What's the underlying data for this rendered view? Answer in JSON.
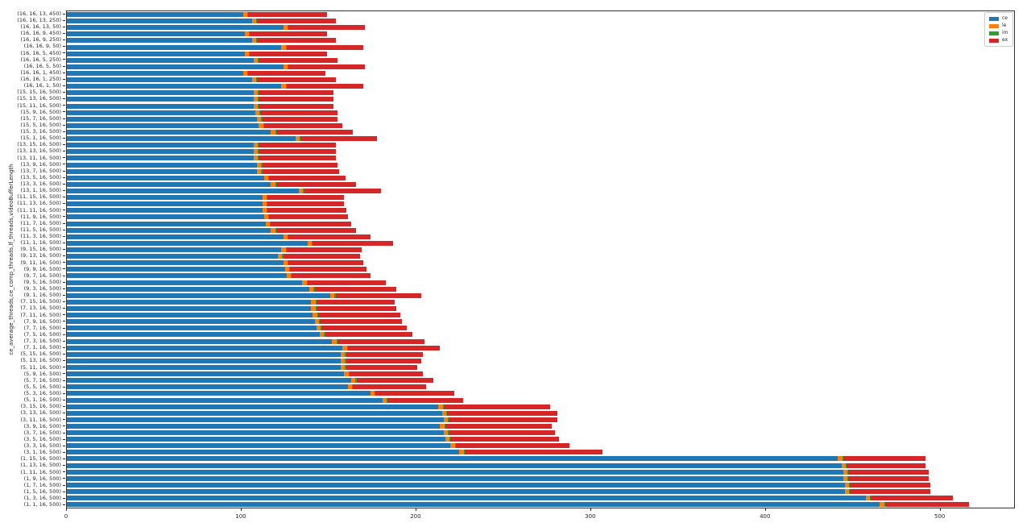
{
  "chart_data": {
    "type": "bar",
    "orientation": "horizontal",
    "stacked": true,
    "title": "",
    "xlabel": "",
    "ylabel": "ce_average_threads,ce_comp_threads,lf_threads,videoBufferLength",
    "xlim": [
      0,
      543
    ],
    "xticks": [
      "0",
      "100",
      "200",
      "300",
      "400",
      "500"
    ],
    "xtick_values": [
      0,
      100,
      200,
      300,
      400,
      500
    ],
    "grid": false,
    "legend": {
      "position": "upper right",
      "entries": [
        "ce",
        "le",
        "im",
        "ex"
      ]
    },
    "colors": {
      "ce": "#1f77b4",
      "le": "#ff7f0e",
      "im": "#2ca02c",
      "ex": "#d62728",
      "spine": "#333333"
    },
    "categories": [
      "(16, 16, 13, 450)",
      "(16, 16, 13, 250)",
      "(16, 16, 13, 50)",
      "(16, 16, 9, 450)",
      "(16, 16, 9, 250)",
      "(16, 16, 9, 50)",
      "(16, 16, 5, 450)",
      "(16, 16, 5, 250)",
      "(16, 16, 5, 50)",
      "(16, 16, 1, 450)",
      "(16, 16, 1, 250)",
      "(16, 16, 1, 50)",
      "(15, 15, 16, 500)",
      "(15, 13, 16, 500)",
      "(15, 11, 16, 500)",
      "(15, 9, 16, 500)",
      "(15, 7, 16, 500)",
      "(15, 5, 16, 500)",
      "(15, 3, 16, 500)",
      "(15, 1, 16, 500)",
      "(13, 15, 16, 500)",
      "(13, 13, 16, 500)",
      "(13, 11, 16, 500)",
      "(13, 9, 16, 500)",
      "(13, 7, 16, 500)",
      "(13, 5, 16, 500)",
      "(13, 3, 16, 500)",
      "(13, 1, 16, 500)",
      "(11, 15, 16, 500)",
      "(11, 13, 16, 500)",
      "(11, 11, 16, 500)",
      "(11, 9, 16, 500)",
      "(11, 7, 16, 500)",
      "(11, 5, 16, 500)",
      "(11, 3, 16, 500)",
      "(11, 1, 16, 500)",
      "(9, 15, 16, 500)",
      "(9, 13, 16, 500)",
      "(9, 11, 16, 500)",
      "(9, 9, 16, 500)",
      "(9, 7, 16, 500)",
      "(9, 5, 16, 500)",
      "(9, 3, 16, 500)",
      "(9, 1, 16, 500)",
      "(7, 15, 16, 500)",
      "(7, 13, 16, 500)",
      "(7, 11, 16, 500)",
      "(7, 9, 16, 500)",
      "(7, 7, 16, 500)",
      "(7, 5, 16, 500)",
      "(7, 3, 16, 500)",
      "(7, 1, 16, 500)",
      "(5, 15, 16, 500)",
      "(5, 13, 16, 500)",
      "(5, 11, 16, 500)",
      "(5, 9, 16, 500)",
      "(5, 7, 16, 500)",
      "(5, 5, 16, 500)",
      "(5, 3, 16, 500)",
      "(5, 1, 16, 500)",
      "(3, 15, 16, 500)",
      "(3, 13, 16, 500)",
      "(3, 11, 16, 500)",
      "(3, 9, 16, 500)",
      "(3, 7, 16, 500)",
      "(3, 5, 16, 500)",
      "(3, 3, 16, 500)",
      "(3, 1, 16, 500)",
      "(1, 15, 16, 500)",
      "(1, 13, 16, 500)",
      "(1, 11, 16, 500)",
      "(1, 9, 16, 500)",
      "(1, 7, 16, 500)",
      "(1, 5, 16, 500)",
      "(1, 3, 16, 500)",
      "(1, 1, 16, 500)"
    ],
    "series": [
      {
        "name": "ce",
        "color": "#1f77b4",
        "values": [
          101,
          106,
          124,
          102,
          106,
          123,
          102,
          107,
          124,
          101,
          106,
          123,
          107,
          107,
          107,
          108,
          109,
          110,
          117,
          131,
          107,
          107,
          107,
          109,
          109,
          113,
          117,
          133,
          112,
          112,
          112,
          113,
          114,
          117,
          124,
          138,
          123,
          121,
          124,
          125,
          126,
          135,
          139,
          151,
          140,
          140,
          141,
          142,
          143,
          145,
          152,
          158,
          157,
          157,
          157,
          159,
          163,
          161,
          174,
          181,
          213,
          215,
          216,
          214,
          216,
          217,
          220,
          225,
          442,
          444,
          445,
          445,
          446,
          446,
          458,
          466
        ]
      },
      {
        "name": "le",
        "color": "#ff7f0e",
        "values": [
          2.5,
          2.5,
          2.5,
          2.5,
          2.5,
          2.5,
          2.5,
          2.5,
          2.5,
          2.5,
          2.5,
          2.5,
          2.5,
          2.5,
          2.5,
          2.5,
          2.5,
          2.5,
          2.5,
          2.5,
          2.5,
          2.5,
          2.5,
          2.5,
          2.5,
          2.5,
          2.5,
          2.5,
          2.5,
          2.5,
          2.5,
          2.5,
          2.5,
          2.5,
          2.5,
          2.5,
          2.5,
          2.5,
          2.5,
          2.5,
          2.5,
          2.5,
          2.5,
          2.5,
          2.5,
          2.5,
          2.5,
          2.5,
          2.5,
          2.5,
          2.5,
          2.5,
          2.5,
          2.5,
          2.5,
          2.5,
          2.5,
          2.5,
          2.5,
          2.5,
          2.5,
          2.5,
          2.5,
          2.5,
          2.5,
          2.5,
          2.5,
          2.5,
          2.5,
          2.5,
          2.5,
          2.5,
          2.5,
          2.5,
          2.5,
          2.5
        ]
      },
      {
        "name": "im",
        "color": "#2ca02c",
        "values": [
          0.5,
          0.5,
          0.5,
          0.5,
          0.5,
          0.5,
          0.5,
          0.5,
          0.5,
          0.5,
          0.5,
          0.5,
          0.5,
          0.5,
          0.5,
          0.5,
          0.5,
          0.5,
          0.5,
          0.5,
          0.5,
          0.5,
          0.5,
          0.5,
          0.5,
          0.5,
          0.5,
          0.5,
          0.5,
          0.5,
          0.5,
          0.5,
          0.5,
          0.5,
          0.5,
          0.5,
          0.5,
          0.5,
          0.5,
          0.5,
          0.5,
          0.5,
          0.5,
          0.5,
          0.5,
          0.5,
          0.5,
          0.5,
          0.5,
          0.5,
          0.5,
          0.5,
          0.5,
          0.5,
          0.5,
          0.5,
          0.5,
          0.5,
          0.5,
          0.5,
          0.5,
          0.5,
          0.5,
          0.5,
          0.5,
          0.5,
          0.5,
          0.5,
          0.5,
          0.5,
          0.5,
          0.5,
          0.5,
          0.5,
          0.5,
          0.5
        ]
      },
      {
        "name": "ex",
        "color": "#d62728",
        "values": [
          45,
          45,
          44,
          44,
          45,
          44,
          44,
          45,
          44,
          44,
          45,
          44,
          43,
          43,
          43,
          44,
          43,
          45,
          44,
          44,
          44,
          44,
          44,
          43,
          44,
          44,
          46,
          44,
          44,
          44,
          45,
          45,
          46,
          46,
          47,
          46,
          43,
          44,
          43,
          44,
          45,
          45,
          47,
          49,
          45,
          46,
          47,
          47,
          49,
          50,
          50,
          53,
          44,
          43,
          41,
          42,
          44,
          42,
          45,
          43,
          61,
          63,
          62,
          61,
          61,
          62,
          65,
          79,
          47,
          45,
          46,
          46,
          46,
          46,
          47,
          48
        ]
      }
    ]
  }
}
